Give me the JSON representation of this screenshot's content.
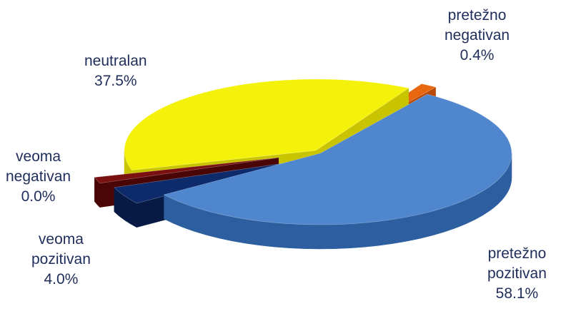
{
  "chart_data": {
    "type": "pie",
    "title": "",
    "slices": [
      {
        "label_lines": [
          "pretežno",
          "pozitivan"
        ],
        "value": 58.1,
        "value_text": "58.1%",
        "color": "#4f86cd",
        "side": "#2d5fa0"
      },
      {
        "label_lines": [
          "veoma",
          "pozitivan"
        ],
        "value": 4.0,
        "value_text": "4.0%",
        "color": "#0d2a6b",
        "side": "#071a46"
      },
      {
        "label_lines": [
          "veoma",
          "negativan"
        ],
        "value": 0.0,
        "value_text": "0.0%",
        "color": "#7a1010",
        "side": "#4a0606"
      },
      {
        "label_lines": [
          "neutralan"
        ],
        "value": 37.5,
        "value_text": "37.5%",
        "color": "#f4f20a",
        "side": "#c8c400"
      },
      {
        "label_lines": [
          "pretežno",
          "negativan"
        ],
        "value": 0.4,
        "value_text": "0.4%",
        "color": "#e8660f",
        "side": "#b84a05"
      }
    ]
  }
}
